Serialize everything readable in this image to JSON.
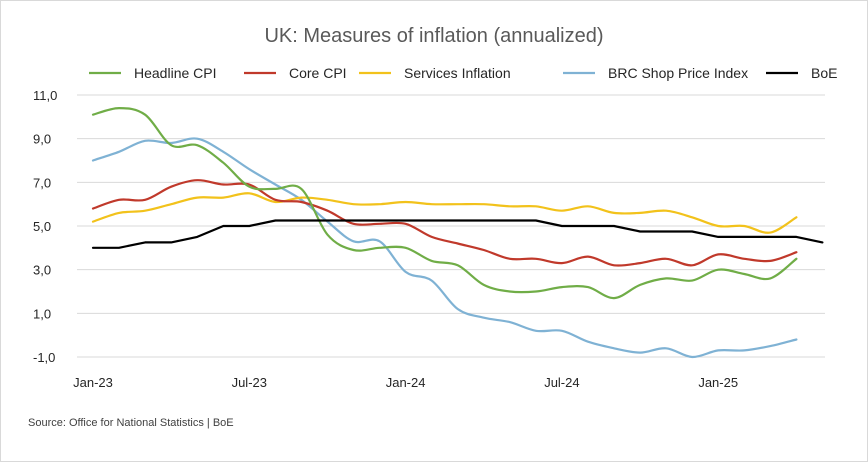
{
  "source": "Source: Office for National Statistics | BoE",
  "chart_data": {
    "type": "line",
    "title": "UK: Measures of inflation (annualized)",
    "xlabel": "",
    "ylabel": "",
    "ylim": [
      -1.0,
      11.0
    ],
    "yticks": [
      "11,0",
      "9,0",
      "7,0",
      "5,0",
      "3,0",
      "1,0",
      "-1,0"
    ],
    "ytick_values": [
      11,
      9,
      7,
      5,
      3,
      1,
      -1
    ],
    "xticks": [
      "Jan-23",
      "Jul-23",
      "Jan-24",
      "Jul-24",
      "Jan-25"
    ],
    "xtick_positions": [
      0,
      6,
      12,
      18,
      24
    ],
    "grid": "horizontal",
    "legend": "top",
    "series": [
      {
        "name": "Headline CPI",
        "color": "#70ad47",
        "values": [
          10.1,
          10.4,
          10.1,
          8.7,
          8.7,
          7.9,
          6.8,
          6.7,
          6.7,
          4.6,
          3.9,
          4.0,
          4.0,
          3.4,
          3.2,
          2.3,
          2.0,
          2.0,
          2.2,
          2.2,
          1.7,
          2.3,
          2.6,
          2.5,
          3.0,
          2.8,
          2.6,
          3.5
        ]
      },
      {
        "name": "Core CPI",
        "color": "#c0392b",
        "values": [
          5.8,
          6.2,
          6.2,
          6.8,
          7.1,
          6.9,
          6.9,
          6.2,
          6.1,
          5.7,
          5.1,
          5.1,
          5.1,
          4.5,
          4.2,
          3.9,
          3.5,
          3.5,
          3.3,
          3.6,
          3.2,
          3.3,
          3.5,
          3.2,
          3.7,
          3.5,
          3.4,
          3.8
        ]
      },
      {
        "name": "Services Inflation",
        "color": "#f2c21b",
        "values": [
          5.2,
          5.6,
          5.7,
          6.0,
          6.3,
          6.3,
          6.5,
          6.1,
          6.3,
          6.2,
          6.0,
          6.0,
          6.1,
          6.0,
          6.0,
          6.0,
          5.9,
          5.9,
          5.7,
          5.9,
          5.6,
          5.6,
          5.7,
          5.4,
          5.0,
          5.0,
          4.7,
          5.4
        ]
      },
      {
        "name": "BRC Shop Price Index",
        "color": "#7fb2d4",
        "values": [
          8.0,
          8.4,
          8.9,
          8.8,
          9.0,
          8.4,
          7.6,
          6.9,
          6.2,
          5.2,
          4.3,
          4.3,
          2.9,
          2.5,
          1.2,
          0.8,
          0.6,
          0.2,
          0.2,
          -0.3,
          -0.6,
          -0.8,
          -0.6,
          -1.0,
          -0.7,
          -0.7,
          -0.5,
          -0.2
        ]
      },
      {
        "name": "BoE",
        "color": "#000000",
        "step": true,
        "values": [
          4.0,
          4.0,
          4.25,
          4.25,
          4.5,
          5.0,
          5.0,
          5.25,
          5.25,
          5.25,
          5.25,
          5.25,
          5.25,
          5.25,
          5.25,
          5.25,
          5.25,
          5.25,
          5.0,
          5.0,
          5.0,
          4.75,
          4.75,
          4.75,
          4.5,
          4.5,
          4.5,
          4.5,
          4.25
        ]
      }
    ]
  }
}
